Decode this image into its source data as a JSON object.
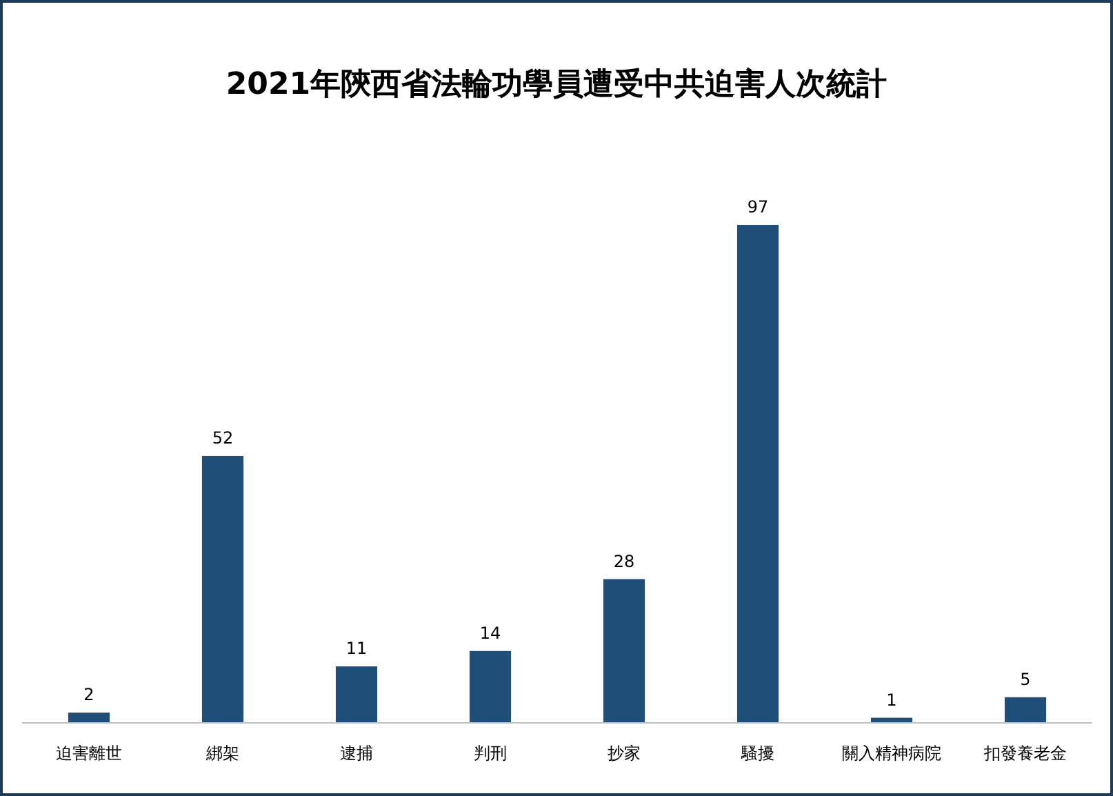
{
  "chart_data": {
    "type": "bar",
    "title": "2021年陝西省法輪功學員遭受中共迫害人次統計",
    "categories": [
      "迫害離世",
      "綁架",
      "逮捕",
      "判刑",
      "抄家",
      "騷擾",
      "關入精神病院",
      "扣發養老金"
    ],
    "values": [
      2,
      52,
      11,
      14,
      28,
      97,
      1,
      5
    ],
    "color": "#1f4e79",
    "data_labels": true
  }
}
